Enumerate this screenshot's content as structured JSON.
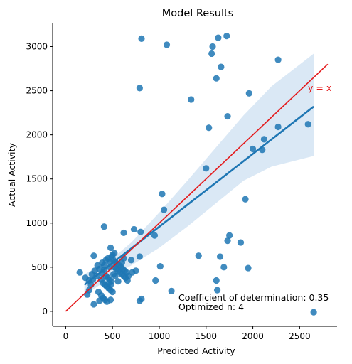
{
  "chart_data": {
    "type": "scatter",
    "title": "Model Results",
    "xlabel": "Predicted Activity",
    "ylabel": "Actual Activity",
    "xlim": [
      -140,
      2900
    ],
    "ylim": [
      -170,
      3270
    ],
    "xticks": [
      0,
      500,
      1000,
      1500,
      2000,
      2500
    ],
    "yticks": [
      0,
      500,
      1000,
      1500,
      2000,
      2500,
      3000
    ],
    "grid": false,
    "colors": {
      "points": "#1f77b4",
      "regression": "#1f77b4",
      "ci_band": "#c6dbef",
      "identity": "#e41a1c"
    },
    "identity_line": {
      "label": "y = x",
      "x": [
        0,
        2800
      ],
      "y": [
        0,
        2800
      ]
    },
    "regression_line": {
      "x": [
        200,
        2650
      ],
      "y": [
        300,
        2320
      ]
    },
    "confidence_band": {
      "x": [
        200,
        500,
        700,
        1000,
        1300,
        1600,
        1900,
        2200,
        2650
      ],
      "upper": [
        420,
        600,
        780,
        1120,
        1480,
        1850,
        2220,
        2550,
        2920
      ],
      "lower": [
        180,
        400,
        520,
        720,
        960,
        1220,
        1480,
        1640,
        1760
      ]
    },
    "annotations": [
      "Coefficient of determination: 0.35",
      "Optimized n: 4"
    ],
    "points": [
      [
        810,
        3090
      ],
      [
        1080,
        3020
      ],
      [
        1630,
        3100
      ],
      [
        1720,
        3120
      ],
      [
        1570,
        3000
      ],
      [
        1560,
        2920
      ],
      [
        2270,
        2850
      ],
      [
        1660,
        2770
      ],
      [
        1610,
        2640
      ],
      [
        790,
        2530
      ],
      [
        1340,
        2400
      ],
      [
        1960,
        2470
      ],
      [
        1730,
        2210
      ],
      [
        1530,
        2080
      ],
      [
        2270,
        2090
      ],
      [
        2590,
        2120
      ],
      [
        2120,
        1950
      ],
      [
        2000,
        1840
      ],
      [
        2100,
        1830
      ],
      [
        1500,
        1620
      ],
      [
        1030,
        1330
      ],
      [
        1050,
        1150
      ],
      [
        1920,
        1270
      ],
      [
        410,
        960
      ],
      [
        730,
        930
      ],
      [
        800,
        900
      ],
      [
        620,
        890
      ],
      [
        950,
        860
      ],
      [
        1750,
        860
      ],
      [
        1730,
        800
      ],
      [
        1870,
        780
      ],
      [
        480,
        720
      ],
      [
        1420,
        630
      ],
      [
        1650,
        620
      ],
      [
        300,
        630
      ],
      [
        790,
        620
      ],
      [
        1010,
        510
      ],
      [
        1690,
        500
      ],
      [
        1950,
        490
      ],
      [
        750,
        460
      ],
      [
        710,
        440
      ],
      [
        1610,
        350
      ],
      [
        1620,
        240
      ],
      [
        960,
        350
      ],
      [
        1130,
        230
      ],
      [
        810,
        140
      ],
      [
        790,
        120
      ],
      [
        2650,
        -10
      ],
      [
        150,
        440
      ],
      [
        210,
        380
      ],
      [
        250,
        350
      ],
      [
        280,
        420
      ],
      [
        310,
        460
      ],
      [
        340,
        520
      ],
      [
        360,
        480
      ],
      [
        390,
        550
      ],
      [
        410,
        520
      ],
      [
        430,
        580
      ],
      [
        450,
        600
      ],
      [
        470,
        560
      ],
      [
        490,
        620
      ],
      [
        510,
        580
      ],
      [
        530,
        560
      ],
      [
        550,
        540
      ],
      [
        570,
        520
      ],
      [
        590,
        500
      ],
      [
        610,
        480
      ],
      [
        630,
        460
      ],
      [
        650,
        440
      ],
      [
        670,
        400
      ],
      [
        430,
        400
      ],
      [
        450,
        380
      ],
      [
        470,
        360
      ],
      [
        490,
        340
      ],
      [
        510,
        420
      ],
      [
        530,
        400
      ],
      [
        380,
        360
      ],
      [
        400,
        320
      ],
      [
        420,
        300
      ],
      [
        440,
        280
      ],
      [
        460,
        260
      ],
      [
        480,
        240
      ],
      [
        500,
        220
      ],
      [
        520,
        500
      ],
      [
        540,
        480
      ],
      [
        560,
        460
      ],
      [
        580,
        440
      ],
      [
        600,
        420
      ],
      [
        620,
        400
      ],
      [
        640,
        380
      ],
      [
        350,
        220
      ],
      [
        380,
        180
      ],
      [
        400,
        150
      ],
      [
        420,
        130
      ],
      [
        440,
        110
      ],
      [
        460,
        320
      ],
      [
        480,
        300
      ],
      [
        300,
        80
      ],
      [
        230,
        190
      ],
      [
        250,
        240
      ],
      [
        360,
        120
      ],
      [
        480,
        130
      ],
      [
        600,
        550
      ],
      [
        660,
        350
      ],
      [
        560,
        340
      ],
      [
        520,
        660
      ],
      [
        500,
        640
      ],
      [
        470,
        500
      ],
      [
        410,
        470
      ],
      [
        390,
        430
      ],
      [
        330,
        400
      ],
      [
        290,
        360
      ],
      [
        270,
        300
      ],
      [
        620,
        600
      ],
      [
        700,
        580
      ]
    ]
  }
}
